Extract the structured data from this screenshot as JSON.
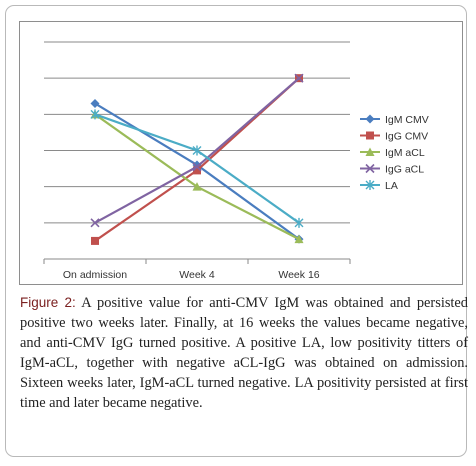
{
  "caption": {
    "label": "Figure",
    "number": "2:",
    "text": " A positive value for anti-CMV IgM was obtained and persisted positive two weeks later. Finally, at 16 weeks the values became negative, and anti-CMV IgG turned positive. A positive LA, low positivity titters of IgM-aCL, together with negative aCL-IgG was obtained on admission. Sixteen weeks later, IgM-aCL turned negative. LA positivity persisted at first time and later became negative."
  },
  "chart_data": {
    "type": "line",
    "categories": [
      "On admission",
      "Week 4",
      "Week 16"
    ],
    "ylim": [
      0,
      6
    ],
    "y_axis_labels_shown": false,
    "grid": "horizontal",
    "legend_position": "right",
    "series": [
      {
        "name": "IgM CMV",
        "values": [
          4.3,
          2.6,
          0.55
        ],
        "color": "#4a7dbf",
        "marker": "diamond"
      },
      {
        "name": "IgG CMV",
        "values": [
          0.5,
          2.45,
          5.0
        ],
        "color": "#c0504d",
        "marker": "square"
      },
      {
        "name": "IgM aCL",
        "values": [
          4.0,
          2.0,
          0.55
        ],
        "color": "#9bbb59",
        "marker": "triangle"
      },
      {
        "name": "IgG aCL",
        "values": [
          1.0,
          2.55,
          5.0
        ],
        "color": "#8064a2",
        "marker": "x"
      },
      {
        "name": "LA",
        "values": [
          4.0,
          3.0,
          1.0
        ],
        "color": "#4bacc6",
        "marker": "star"
      }
    ]
  }
}
